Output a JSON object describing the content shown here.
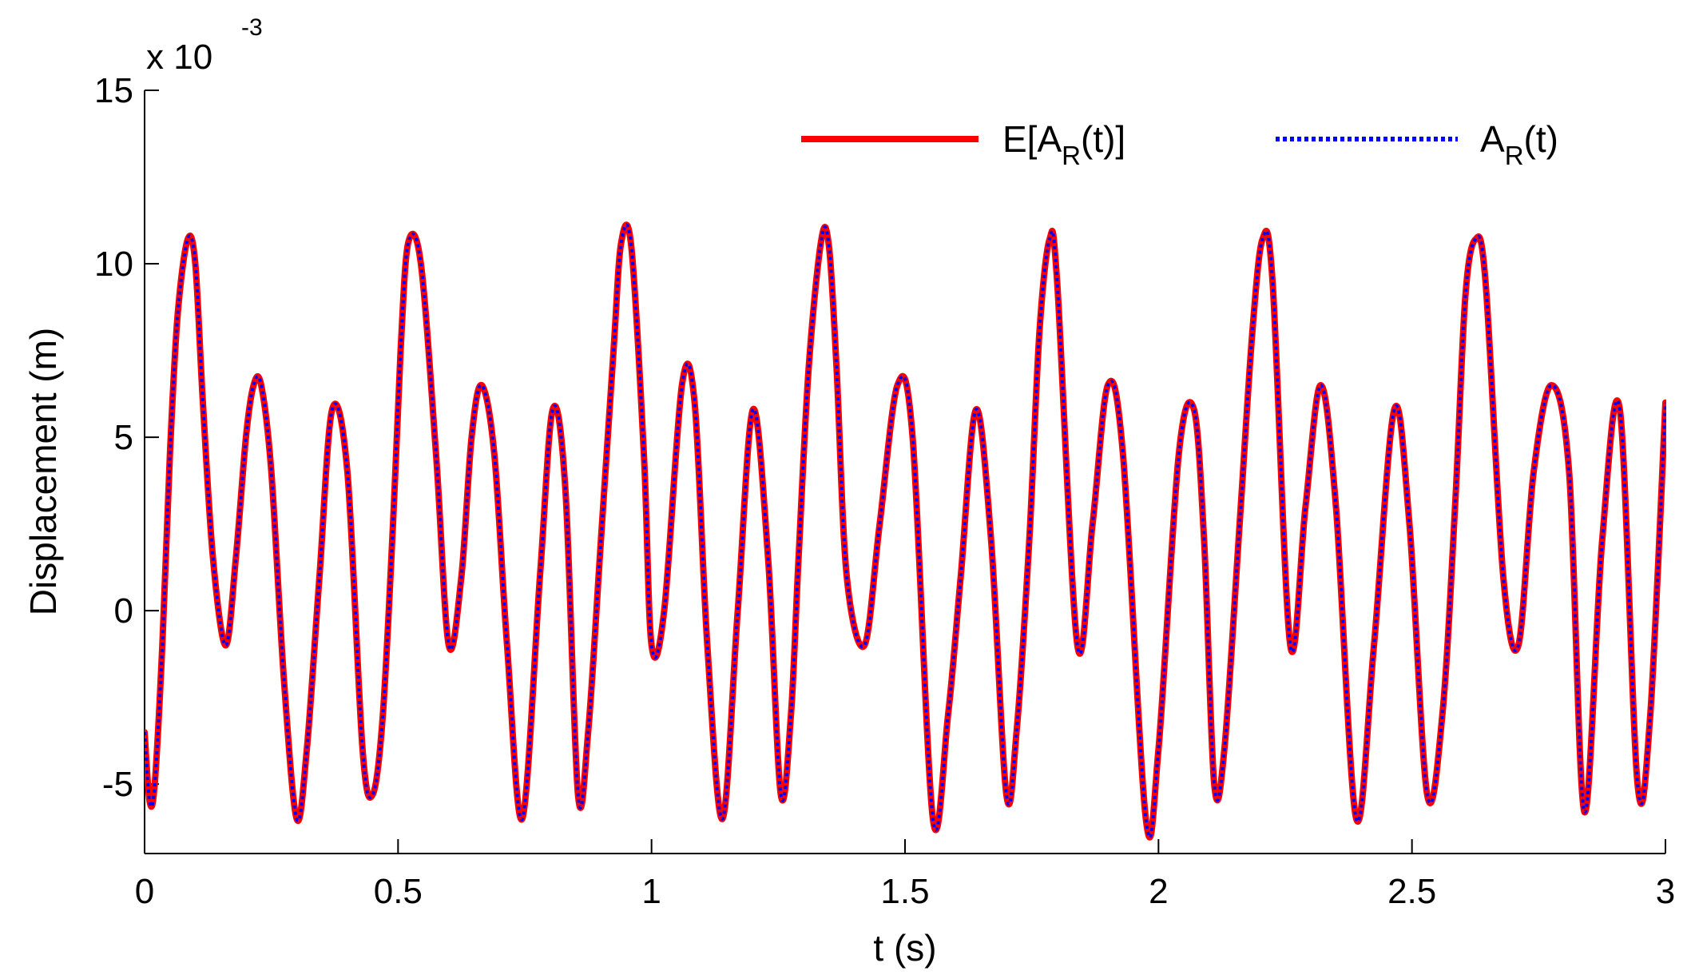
{
  "chart_data": {
    "type": "line",
    "title": "",
    "xlabel": "t (s)",
    "ylabel": "Displacement (m)",
    "y_multiplier": {
      "base": "x 10",
      "exponent": "-3"
    },
    "xlim": [
      0,
      3
    ],
    "ylim": [
      -7,
      15
    ],
    "xticks": [
      0,
      0.5,
      1,
      1.5,
      2,
      2.5,
      3
    ],
    "xtick_labels": [
      "0",
      "0.5",
      "1",
      "1.5",
      "2",
      "2.5",
      "3"
    ],
    "yticks": [
      -5,
      0,
      5,
      10,
      15
    ],
    "ytick_labels": [
      "-5",
      "0",
      "5",
      "10",
      "15"
    ],
    "grid": false,
    "legend_position": "top-right",
    "series": [
      {
        "name_main": "E[A",
        "name_sub": "R",
        "name_tail": "(t)]",
        "color": "#ff0000",
        "style": "solid",
        "x": [
          0,
          0.01,
          0.02,
          0.035,
          0.05,
          0.065,
          0.085,
          0.1,
          0.115,
          0.135,
          0.16,
          0.18,
          0.2,
          0.215,
          0.23,
          0.25,
          0.275,
          0.3,
          0.32,
          0.345,
          0.37,
          0.4,
          0.43,
          0.45,
          0.47,
          0.49,
          0.505,
          0.52,
          0.545,
          0.575,
          0.6,
          0.625,
          0.645,
          0.665,
          0.69,
          0.715,
          0.745,
          0.78,
          0.805,
          0.83,
          0.855,
          0.875,
          0.9,
          0.925,
          0.94,
          0.96,
          0.985,
          1.0,
          1.025,
          1.06,
          1.085,
          1.11,
          1.14,
          1.17,
          1.2,
          1.23,
          1.255,
          1.275,
          1.29,
          1.31,
          1.335,
          1.35,
          1.365,
          1.385,
          1.42,
          1.45,
          1.485,
          1.515,
          1.555,
          1.585,
          1.61,
          1.64,
          1.67,
          1.7,
          1.72,
          1.745,
          1.765,
          1.785,
          1.8,
          1.84,
          1.87,
          1.9,
          1.93,
          1.975,
          2.0,
          2.04,
          2.07,
          2.09,
          2.11,
          2.13,
          2.16,
          2.185,
          2.205,
          2.225,
          2.26,
          2.29,
          2.32,
          2.35,
          2.39,
          2.425,
          2.465,
          2.495,
          2.53,
          2.56,
          2.585,
          2.605,
          2.625,
          2.645,
          2.68,
          2.71,
          2.74,
          2.775,
          2.81,
          2.84,
          2.875,
          2.91,
          2.945,
          2.97,
          3.0
        ],
        "y": [
          -3.5,
          -5.5,
          -5.0,
          -1.0,
          4.5,
          8.5,
          10.7,
          10.0,
          6.0,
          1.5,
          -1.0,
          1.5,
          5.0,
          6.5,
          6.5,
          4.0,
          -2.0,
          -6.0,
          -4.0,
          1.0,
          5.8,
          4.0,
          -4.0,
          -5.3,
          -3.0,
          2.5,
          7.5,
          10.6,
          10.0,
          4.5,
          -1.0,
          1.0,
          5.0,
          6.5,
          4.5,
          -1.0,
          -6.0,
          1.0,
          5.8,
          3.5,
          -5.3,
          -3.5,
          2.0,
          7.5,
          10.6,
          10.5,
          4.5,
          -1.0,
          0.0,
          6.5,
          6.0,
          -1.0,
          -6.0,
          0.0,
          5.8,
          1.5,
          -5.3,
          -3.0,
          1.5,
          7.0,
          10.7,
          10.5,
          7.0,
          1.0,
          -1.0,
          2.5,
          6.5,
          5.0,
          -6.0,
          -3.0,
          1.0,
          5.8,
          2.0,
          -5.3,
          -3.5,
          2.0,
          8.0,
          10.7,
          9.5,
          -1.0,
          2.5,
          6.5,
          4.5,
          -6.0,
          -4.0,
          4.5,
          5.8,
          2.0,
          -5.0,
          -4.0,
          2.5,
          8.0,
          10.7,
          9.5,
          -1.0,
          3.0,
          6.5,
          3.0,
          -6.0,
          -1.0,
          5.8,
          2.5,
          -5.3,
          -3.0,
          3.0,
          9.0,
          10.7,
          9.5,
          1.0,
          -1.0,
          4.0,
          6.5,
          4.0,
          -5.8,
          2.0,
          5.8,
          -5.0,
          -3.0,
          6.0
        ]
      },
      {
        "name_main": "A",
        "name_sub": "R",
        "name_tail": "(t)",
        "color": "#0000ff",
        "style": "dotted"
      }
    ]
  }
}
